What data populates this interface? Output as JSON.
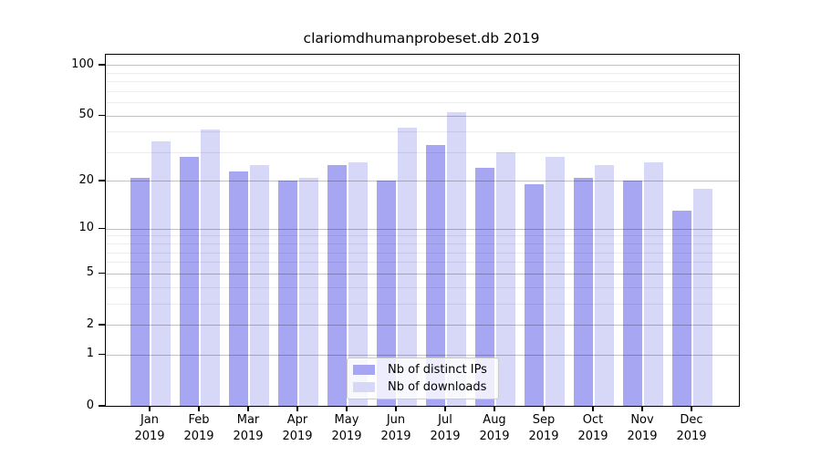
{
  "title": "clariomdhumanprobeset.db 2019",
  "chart_data": {
    "type": "bar",
    "title": "clariomdhumanprobeset.db 2019",
    "y_scale": "log1p",
    "ylim": [
      0,
      115
    ],
    "grid": "on",
    "legend_position": "bottom-center",
    "categories": [
      {
        "month": "Jan",
        "year": "2019"
      },
      {
        "month": "Feb",
        "year": "2019"
      },
      {
        "month": "Mar",
        "year": "2019"
      },
      {
        "month": "Apr",
        "year": "2019"
      },
      {
        "month": "May",
        "year": "2019"
      },
      {
        "month": "Jun",
        "year": "2019"
      },
      {
        "month": "Jul",
        "year": "2019"
      },
      {
        "month": "Aug",
        "year": "2019"
      },
      {
        "month": "Sep",
        "year": "2019"
      },
      {
        "month": "Oct",
        "year": "2019"
      },
      {
        "month": "Nov",
        "year": "2019"
      },
      {
        "month": "Dec",
        "year": "2019"
      }
    ],
    "series": [
      {
        "name": "Nb of distinct IPs",
        "color": "#a6a6f2",
        "values": [
          21,
          28,
          23,
          20,
          25,
          20,
          33,
          24,
          19,
          21,
          20,
          13
        ]
      },
      {
        "name": "Nb of downloads",
        "color": "#d7d7f7",
        "values": [
          35,
          41,
          25,
          21,
          26,
          42,
          52,
          30,
          28,
          25,
          26,
          18
        ]
      }
    ],
    "yticks": [
      0,
      1,
      2,
      5,
      10,
      20,
      50,
      100
    ],
    "minor_yticks": [
      3,
      4,
      6,
      7,
      8,
      9,
      30,
      40,
      60,
      70,
      80,
      90
    ]
  },
  "colors": {
    "axis": "#000000",
    "major_grid": "#bababa",
    "minor_grid": "#ebebeb",
    "background": "#ffffff"
  }
}
